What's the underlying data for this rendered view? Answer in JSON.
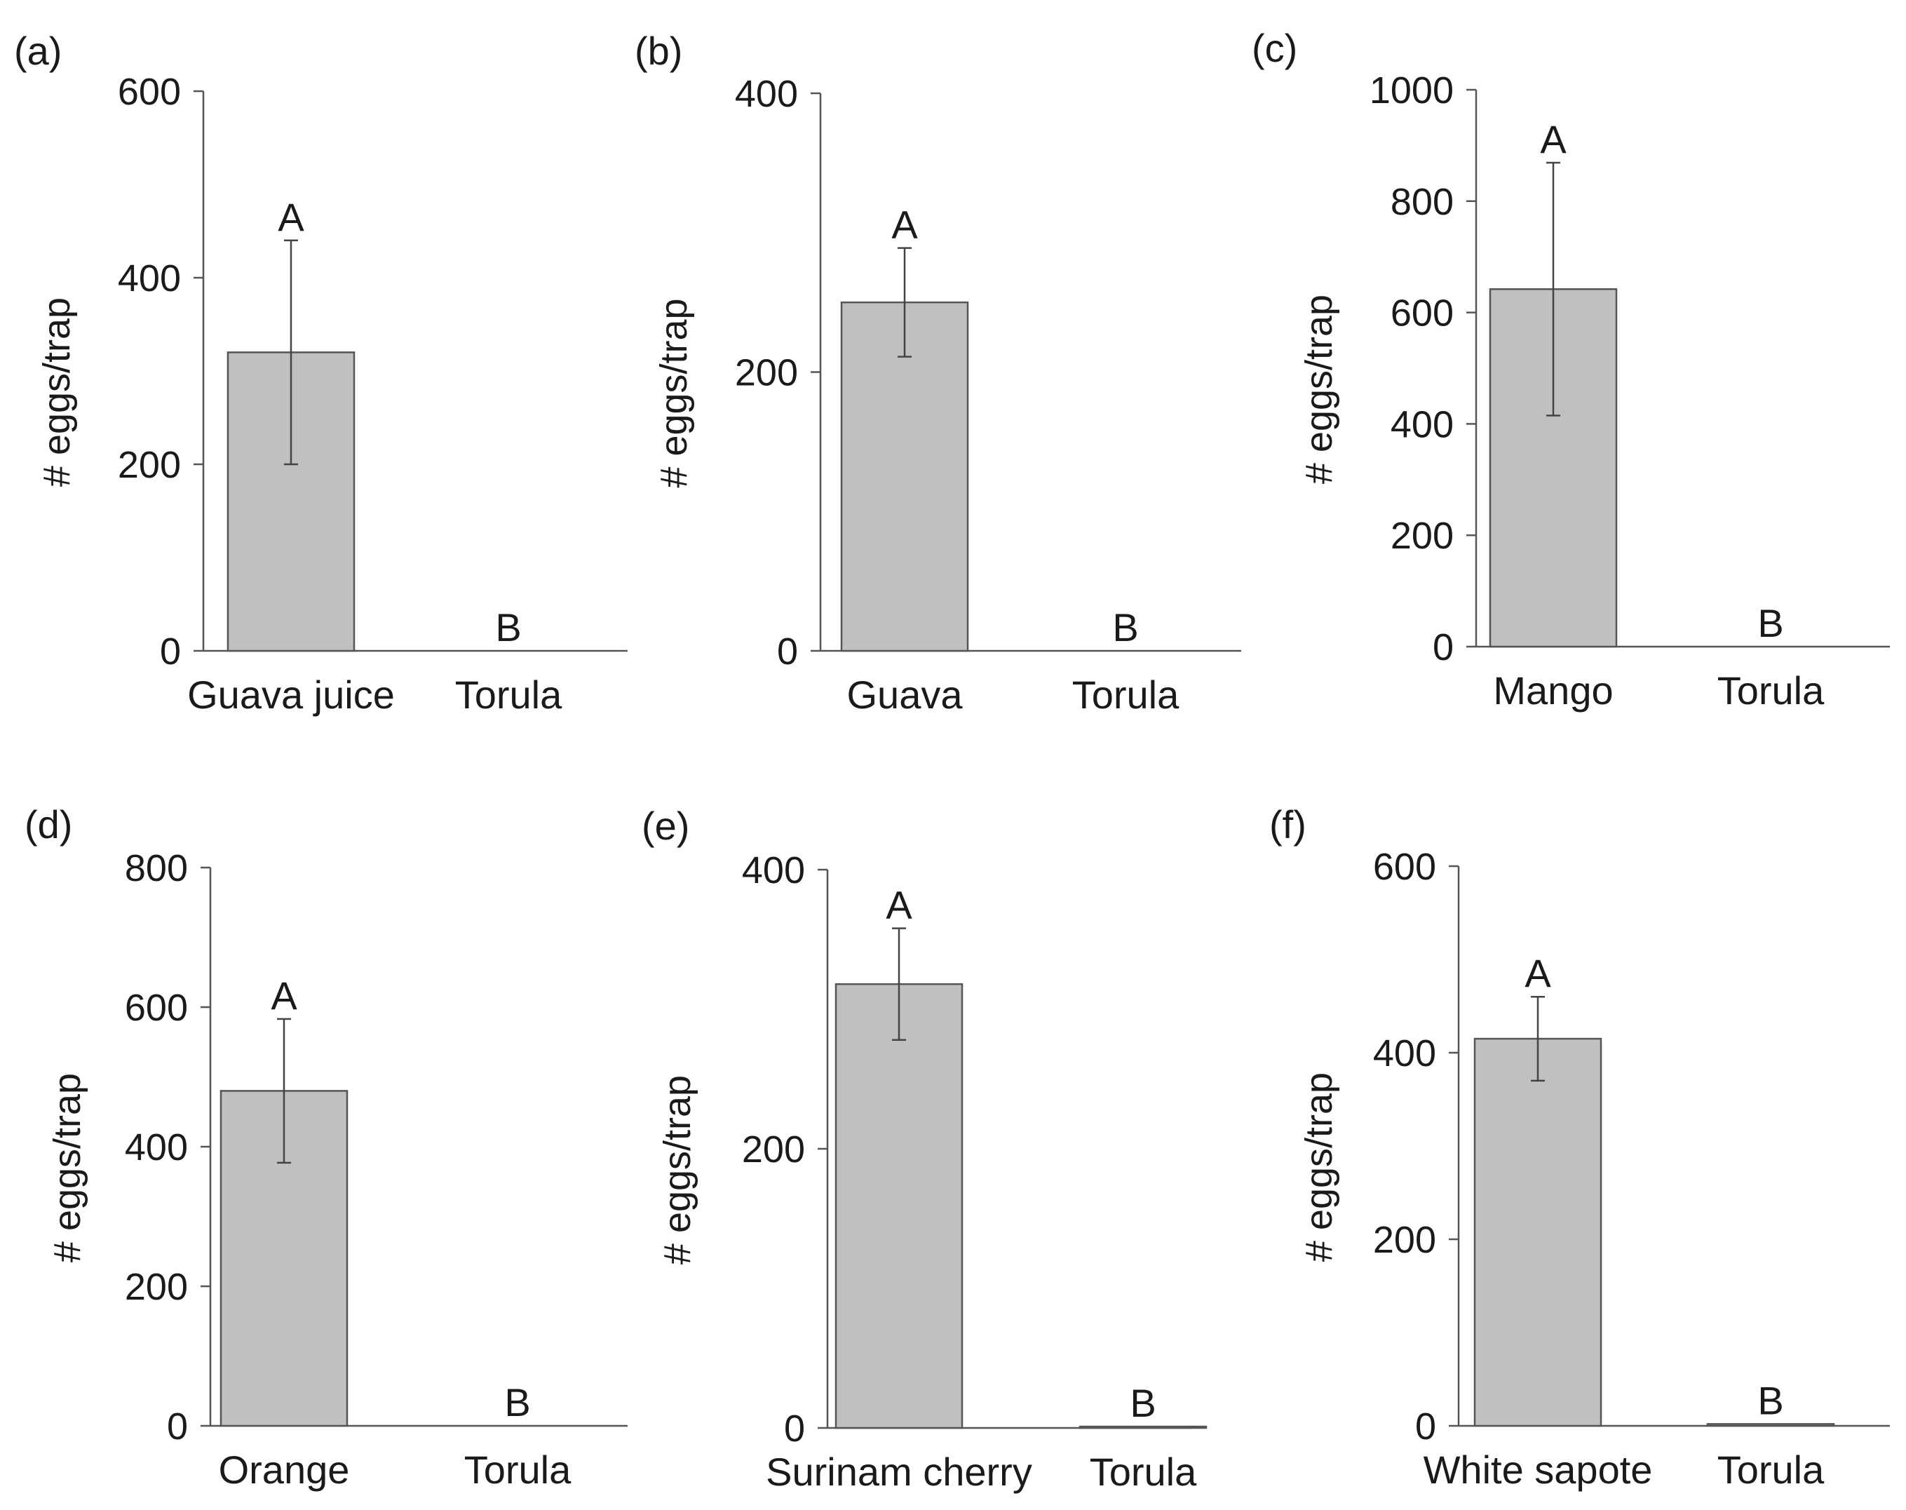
{
  "chart_data": [
    {
      "type": "bar",
      "panel_label": "(a)",
      "ylabel": "# eggs/trap",
      "ylim": [
        0,
        600
      ],
      "yticks": [
        0,
        200,
        400,
        600
      ],
      "categories": [
        "Guava juice",
        "Torula"
      ],
      "values": [
        320,
        0
      ],
      "error": [
        120,
        0
      ],
      "letters": [
        "A",
        "B"
      ]
    },
    {
      "type": "bar",
      "panel_label": "(b)",
      "ylabel": "# eggs/trap",
      "ylim": [
        0,
        400
      ],
      "yticks": [
        0,
        200,
        400
      ],
      "categories": [
        "Guava",
        "Torula"
      ],
      "values": [
        250,
        0
      ],
      "error": [
        39,
        0
      ],
      "letters": [
        "A",
        "B"
      ]
    },
    {
      "type": "bar",
      "panel_label": "(c)",
      "ylabel": "# eggs/trap",
      "ylim": [
        0,
        1000
      ],
      "yticks": [
        0,
        200,
        400,
        600,
        800,
        1000
      ],
      "categories": [
        "Mango",
        "Torula"
      ],
      "values": [
        642,
        0
      ],
      "error": [
        227,
        0
      ],
      "letters": [
        "A",
        "B"
      ]
    },
    {
      "type": "bar",
      "panel_label": "(d)",
      "ylabel": "# eggs/trap",
      "ylim": [
        0,
        800
      ],
      "yticks": [
        0,
        200,
        400,
        600,
        800
      ],
      "categories": [
        "Orange",
        "Torula"
      ],
      "values": [
        480,
        0
      ],
      "error": [
        103,
        0
      ],
      "letters": [
        "A",
        "B"
      ]
    },
    {
      "type": "bar",
      "panel_label": "(e)",
      "ylabel": "# eggs/trap",
      "ylim": [
        0,
        400
      ],
      "yticks": [
        0,
        200,
        400
      ],
      "categories": [
        "Surinam cherry",
        "Torula"
      ],
      "values": [
        318,
        1
      ],
      "error": [
        40,
        0
      ],
      "letters": [
        "A",
        "B"
      ]
    },
    {
      "type": "bar",
      "panel_label": "(f)",
      "ylabel": "# eggs/trap",
      "ylim": [
        0,
        600
      ],
      "yticks": [
        0,
        200,
        400,
        600
      ],
      "categories": [
        "White sapote",
        "Torula"
      ],
      "values": [
        415,
        2
      ],
      "error": [
        45,
        0
      ],
      "letters": [
        "A",
        "B"
      ]
    }
  ]
}
